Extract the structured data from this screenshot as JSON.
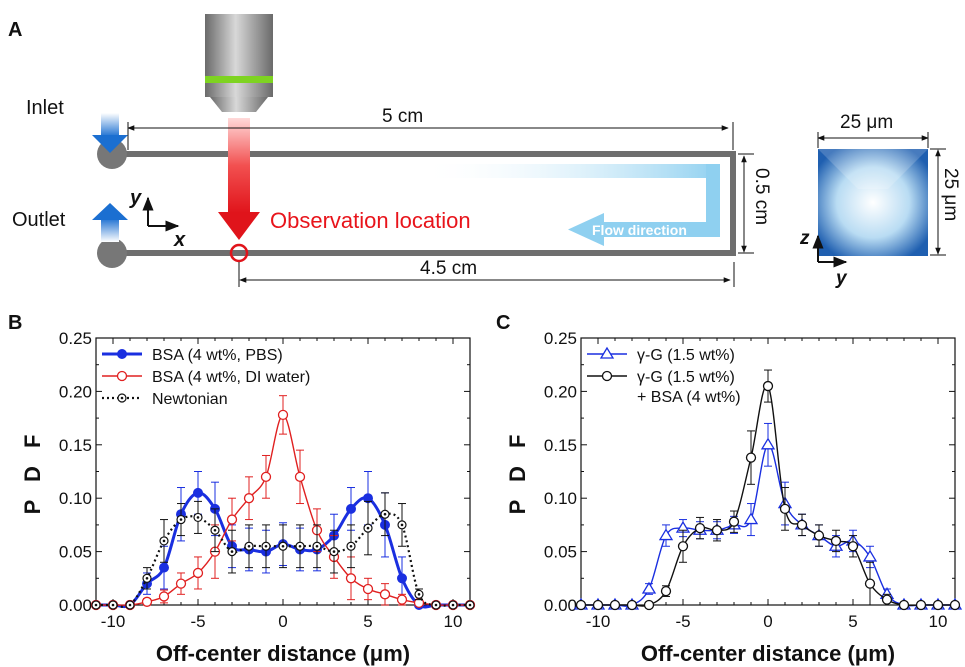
{
  "panel_a": {
    "letter": "A",
    "inlet_label": "Inlet",
    "outlet_label": "Outlet",
    "axis_y": "y",
    "axis_x": "x",
    "length_label": "5 cm",
    "height_label": "0.5 cm",
    "obs_length_label": "4.5 cm",
    "observation_label": "Observation location",
    "flow_label": "Flow direction",
    "cross_width_label": "25 μm",
    "cross_height_label": "25 μm",
    "cross_axis_z": "z",
    "cross_axis_y": "y",
    "colors": {
      "channel": "#6e6e6e",
      "arrow_red": "#e8141b",
      "flow_blue": "#8fd0f0",
      "objective_band": "#7ed321"
    }
  },
  "panel_b": {
    "letter": "B"
  },
  "panel_c": {
    "letter": "C"
  },
  "chart_data": [
    {
      "type": "line",
      "panel": "B",
      "xlabel": "Off-center distance (μm)",
      "ylabel": "P D F",
      "xlim": [
        -11,
        11
      ],
      "ylim": [
        0,
        0.25
      ],
      "xticks": [
        "-10",
        "-5",
        "0",
        "5",
        "10"
      ],
      "yticks": [
        "0.00",
        "0.05",
        "0.10",
        "0.15",
        "0.20",
        "0.25"
      ],
      "legend_position": "top-left",
      "series": [
        {
          "name": "BSA (4 wt%, PBS)",
          "color": "#1a2fe0",
          "marker": "filled-circle",
          "x": [
            -11,
            -10,
            -9,
            -8,
            -7,
            -6,
            -5,
            -4,
            -3,
            -2,
            -1,
            0,
            1,
            2,
            3,
            4,
            5,
            6,
            7,
            8,
            9,
            10,
            11
          ],
          "y": [
            0,
            0,
            0,
            0.02,
            0.035,
            0.085,
            0.105,
            0.09,
            0.055,
            0.052,
            0.05,
            0.057,
            0.052,
            0.052,
            0.065,
            0.09,
            0.1,
            0.075,
            0.025,
            0,
            0,
            0,
            0
          ],
          "err": [
            0,
            0,
            0,
            0.01,
            0.02,
            0.025,
            0.02,
            0.025,
            0.02,
            0.02,
            0.02,
            0.02,
            0.02,
            0.02,
            0.02,
            0.02,
            0.025,
            0.03,
            0.02,
            0,
            0,
            0,
            0
          ]
        },
        {
          "name": "BSA (4 wt%, DI water)",
          "color": "#e02020",
          "marker": "open-circle",
          "x": [
            -11,
            -10,
            -9,
            -8,
            -7,
            -6,
            -5,
            -4,
            -3,
            -2,
            -1,
            0,
            1,
            2,
            3,
            4,
            5,
            6,
            7,
            8,
            9,
            10,
            11
          ],
          "y": [
            0,
            0,
            0,
            0.003,
            0.008,
            0.02,
            0.03,
            0.05,
            0.08,
            0.1,
            0.12,
            0.178,
            0.12,
            0.07,
            0.045,
            0.025,
            0.015,
            0.01,
            0.005,
            0.002,
            0,
            0,
            0
          ],
          "err": [
            0,
            0,
            0,
            0.003,
            0.006,
            0.01,
            0.015,
            0.025,
            0.02,
            0.02,
            0.02,
            0.018,
            0.025,
            0.02,
            0.02,
            0.02,
            0.01,
            0.01,
            0.005,
            0.002,
            0,
            0,
            0
          ]
        },
        {
          "name": "Newtonian",
          "color": "#111111",
          "marker": "dotted-circle",
          "x": [
            -11,
            -10,
            -9,
            -8,
            -7,
            -6,
            -5,
            -4,
            -3,
            -2,
            -1,
            0,
            1,
            2,
            3,
            4,
            5,
            6,
            7,
            8,
            9,
            10,
            11
          ],
          "y": [
            0,
            0,
            0,
            0.025,
            0.06,
            0.08,
            0.082,
            0.07,
            0.05,
            0.055,
            0.055,
            0.055,
            0.055,
            0.055,
            0.05,
            0.055,
            0.072,
            0.085,
            0.075,
            0.01,
            0,
            0,
            0
          ],
          "err": [
            0,
            0,
            0,
            0.01,
            0.02,
            0.015,
            0.015,
            0.02,
            0.02,
            0.02,
            0.02,
            0.02,
            0.02,
            0.02,
            0.02,
            0.02,
            0.025,
            0.02,
            0.02,
            0.005,
            0,
            0,
            0
          ]
        }
      ]
    },
    {
      "type": "line",
      "panel": "C",
      "xlabel": "Off-center distance (μm)",
      "ylabel": "P D F",
      "xlim": [
        -11,
        11
      ],
      "ylim": [
        0,
        0.25
      ],
      "xticks": [
        "-10",
        "-5",
        "0",
        "5",
        "10"
      ],
      "yticks": [
        "0.00",
        "0.05",
        "0.10",
        "0.15",
        "0.20",
        "0.25"
      ],
      "legend_position": "top-left",
      "series": [
        {
          "name": "γ-G (1.5  wt%)",
          "color": "#1a2fe0",
          "marker": "open-triangle",
          "x": [
            -11,
            -10,
            -9,
            -8,
            -7,
            -6,
            -5,
            -4,
            -3,
            -2,
            -1,
            0,
            1,
            2,
            3,
            4,
            5,
            6,
            7,
            8,
            9,
            10,
            11
          ],
          "y": [
            0,
            0,
            0,
            0,
            0.015,
            0.065,
            0.072,
            0.07,
            0.07,
            0.075,
            0.08,
            0.15,
            0.095,
            0.075,
            0.065,
            0.055,
            0.06,
            0.045,
            0.01,
            0,
            0,
            0,
            0
          ],
          "err": [
            0,
            0,
            0,
            0,
            0.005,
            0.01,
            0.008,
            0.008,
            0.008,
            0.008,
            0.015,
            0.02,
            0.02,
            0.01,
            0.01,
            0.01,
            0.01,
            0.01,
            0.005,
            0,
            0,
            0,
            0
          ]
        },
        {
          "name": "γ-G (1.5  wt%) + BSA (4 wt%)",
          "label_lines": [
            "γ-G (1.5  wt%)",
            "+ BSA (4 wt%)"
          ],
          "color": "#111111",
          "marker": "open-circle",
          "x": [
            -11,
            -10,
            -9,
            -8,
            -7,
            -6,
            -5,
            -4,
            -3,
            -2,
            -1,
            0,
            1,
            2,
            3,
            4,
            5,
            6,
            7,
            8,
            9,
            10,
            11
          ],
          "y": [
            0,
            0,
            0,
            0,
            0,
            0.013,
            0.055,
            0.072,
            0.07,
            0.078,
            0.138,
            0.205,
            0.09,
            0.075,
            0.065,
            0.06,
            0.055,
            0.02,
            0.005,
            0,
            0,
            0,
            0
          ],
          "err": [
            0,
            0,
            0,
            0,
            0,
            0.005,
            0.015,
            0.01,
            0.01,
            0.01,
            0.025,
            0.015,
            0.02,
            0.01,
            0.01,
            0.01,
            0.01,
            0.02,
            0.005,
            0,
            0,
            0,
            0
          ]
        }
      ]
    }
  ]
}
